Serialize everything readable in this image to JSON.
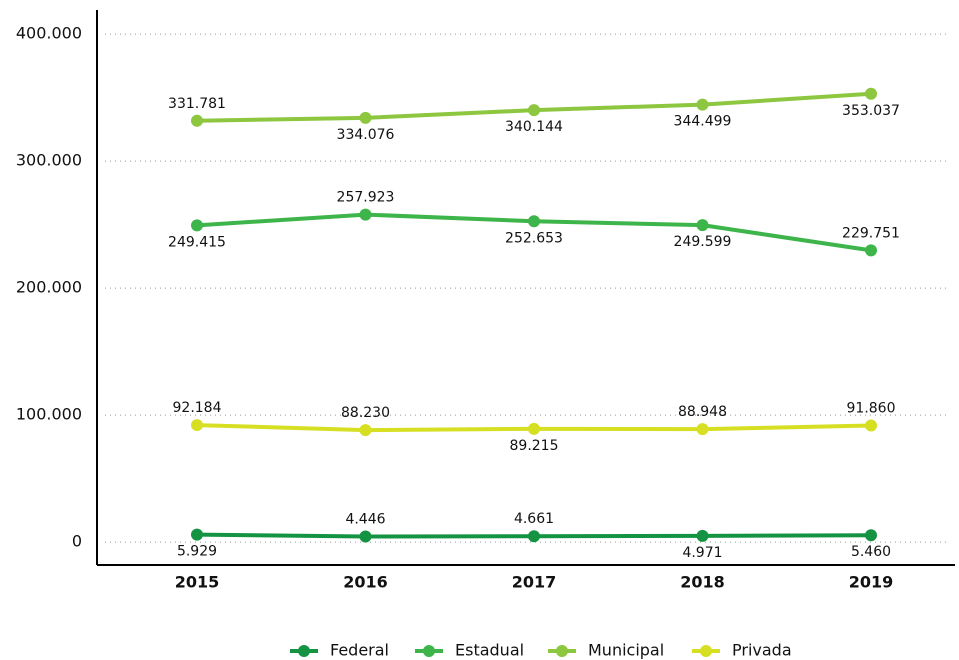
{
  "chart_data": {
    "type": "line",
    "categories": [
      "2015",
      "2016",
      "2017",
      "2018",
      "2019"
    ],
    "series": [
      {
        "name": "Federal",
        "color": "#149443",
        "values": [
          5929,
          4446,
          4661,
          4971,
          5460
        ],
        "value_labels": [
          "5.929",
          "4.446",
          "4.661",
          "4.971",
          "5.460"
        ]
      },
      {
        "name": "Estadual",
        "color": "#3db54a",
        "values": [
          249415,
          257923,
          252653,
          249599,
          229751
        ],
        "value_labels": [
          "249.415",
          "257.923",
          "252.653",
          "249.599",
          "229.751"
        ]
      },
      {
        "name": "Municipal",
        "color": "#8dc63f",
        "values": [
          331781,
          334076,
          340144,
          344499,
          353037
        ],
        "value_labels": [
          "331.781",
          "334.076",
          "340.144",
          "344.499",
          "353.037"
        ]
      },
      {
        "name": "Privada",
        "color": "#d7df23",
        "values": [
          92184,
          88230,
          89215,
          88948,
          91860
        ],
        "value_labels": [
          "92.184",
          "88.230",
          "89.215",
          "88.948",
          "91.860"
        ]
      }
    ],
    "ylim": [
      -18000,
      419000
    ],
    "yticks": [
      0,
      {
        "value": 100000,
        "label": "100.000"
      },
      {
        "value": 200000,
        "label": "200.000"
      },
      {
        "value": 300000,
        "label": "300.000"
      },
      {
        "value": 400000,
        "label": "400.000"
      }
    ],
    "grid": true,
    "legend": "bottom"
  }
}
